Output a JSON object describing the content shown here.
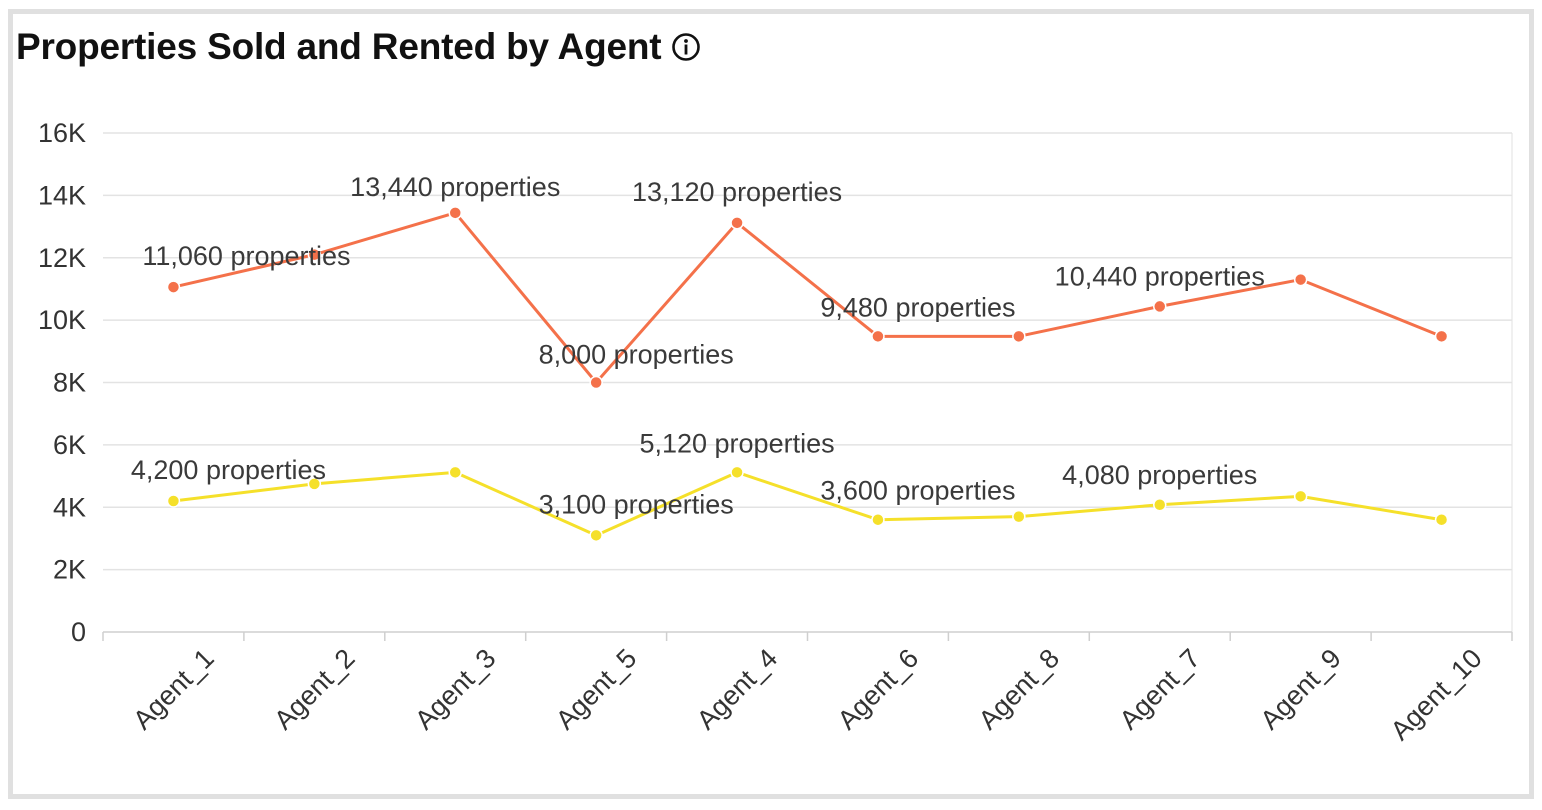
{
  "header": {
    "title": "Properties Sold and Rented by Agent",
    "info_icon": "info-icon"
  },
  "chart_data": {
    "type": "line",
    "title": "Properties Sold and Rented by Agent",
    "xlabel": "",
    "ylabel": "",
    "categories": [
      "Agent_1",
      "Agent_2",
      "Agent_3",
      "Agent_5",
      "Agent_4",
      "Agent_6",
      "Agent_8",
      "Agent_7",
      "Agent_9",
      "Agent_10"
    ],
    "ylim": [
      0,
      16000
    ],
    "y_ticks": [
      {
        "value": 0,
        "label": "0"
      },
      {
        "value": 2000,
        "label": "2K"
      },
      {
        "value": 4000,
        "label": "4K"
      },
      {
        "value": 6000,
        "label": "6K"
      },
      {
        "value": 8000,
        "label": "8K"
      },
      {
        "value": 10000,
        "label": "10K"
      },
      {
        "value": 12000,
        "label": "12K"
      },
      {
        "value": 14000,
        "label": "14K"
      },
      {
        "value": 16000,
        "label": "16K"
      }
    ],
    "grid": true,
    "legend": "none",
    "series": [
      {
        "color": "#f4714a",
        "values": [
          11060,
          12100,
          13440,
          8000,
          13120,
          9480,
          9480,
          10440,
          11300,
          9480
        ],
        "labels": [
          "11,060 properties",
          "",
          "13,440 properties",
          "8,000 properties",
          "13,120 properties",
          "9,480 properties",
          "",
          "10,440 properties",
          "",
          ""
        ]
      },
      {
        "color": "#f5e02a",
        "values": [
          4200,
          4750,
          5120,
          3100,
          5120,
          3600,
          3700,
          4080,
          4350,
          3600
        ],
        "labels": [
          "4,200 properties",
          "",
          "",
          "3,100 properties",
          "5,120 properties",
          "3,600 properties",
          "",
          "4,080 properties",
          "",
          ""
        ]
      }
    ]
  }
}
